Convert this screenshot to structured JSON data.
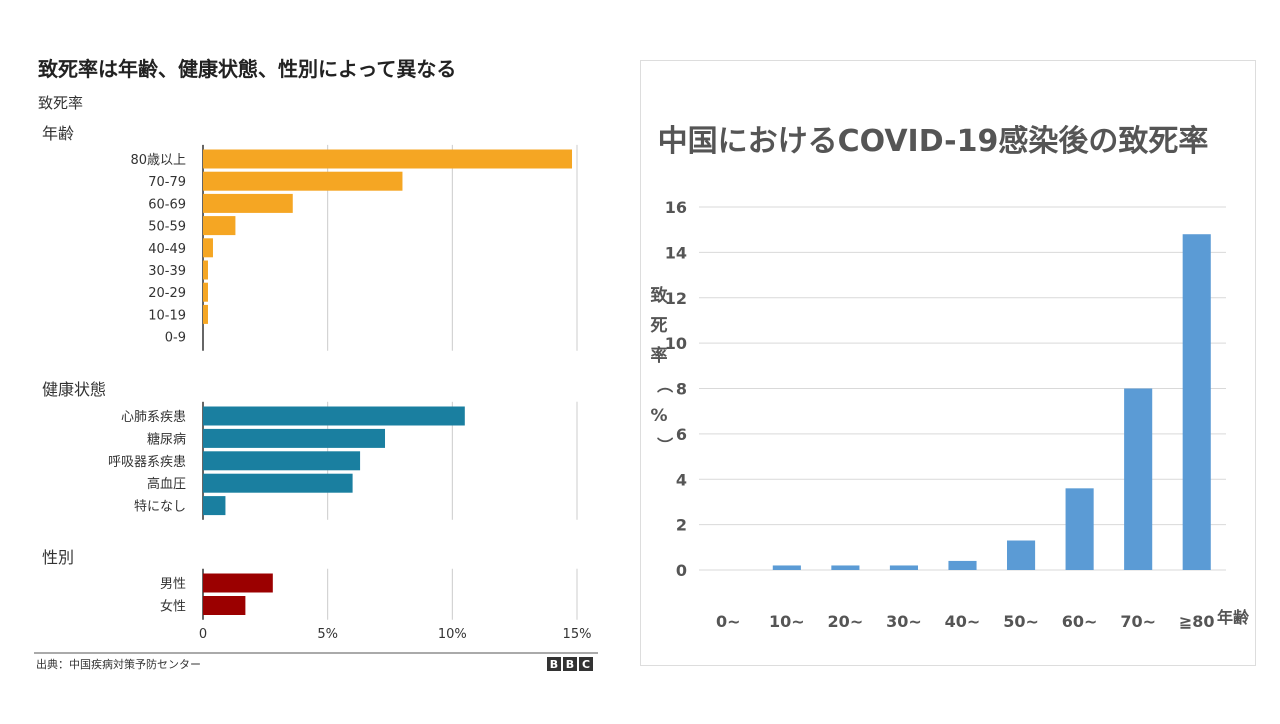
{
  "left": {
    "title": "致死率は年齢、健康状態、性別によって異なる",
    "subtitle": "致死率",
    "source": "出典：中国疾病対策予防センター",
    "logo_letters": [
      "B",
      "B",
      "C"
    ],
    "x_ticks": [
      "0",
      "5%",
      "10%",
      "15%"
    ]
  },
  "right": {
    "title": "中国におけるCOVID-19感染後の致死率",
    "ylabel": "致死率（%）",
    "xlabel": "年齢"
  },
  "colors": {
    "age": "#f5a623",
    "health": "#1a7fa0",
    "sex": "#9b0000",
    "right_bar": "#5b9bd5",
    "grid": "#cccccc"
  },
  "chart_data": [
    {
      "type": "bar",
      "orientation": "horizontal",
      "title": "致死率は年齢、健康状態、性別によって異なる",
      "xlim": [
        0,
        15
      ],
      "x_ticks": [
        "0",
        "5%",
        "10%",
        "15%"
      ],
      "groups": [
        {
          "name": "年齢",
          "categories": [
            "80歳以上",
            "70-79",
            "60-69",
            "50-59",
            "40-49",
            "30-39",
            "20-29",
            "10-19",
            "0-9"
          ],
          "values": [
            14.8,
            8.0,
            3.6,
            1.3,
            0.4,
            0.2,
            0.2,
            0.2,
            0
          ]
        },
        {
          "name": "健康状態",
          "categories": [
            "心肺系疾患",
            "糖尿病",
            "呼吸器系疾患",
            "高血圧",
            "特になし"
          ],
          "values": [
            10.5,
            7.3,
            6.3,
            6.0,
            0.9
          ]
        },
        {
          "name": "性別",
          "categories": [
            "男性",
            "女性"
          ],
          "values": [
            2.8,
            1.7
          ]
        }
      ]
    },
    {
      "type": "bar",
      "title": "中国におけるCOVID-19感染後の致死率",
      "categories": [
        "0~",
        "10~",
        "20~",
        "30~",
        "40~",
        "50~",
        "60~",
        "70~",
        "≧80"
      ],
      "values": [
        0,
        0.2,
        0.2,
        0.2,
        0.4,
        1.3,
        3.6,
        8.0,
        14.8
      ],
      "ylim": [
        0,
        16
      ],
      "y_ticks": [
        0,
        2,
        4,
        6,
        8,
        10,
        12,
        14,
        16
      ],
      "xlabel": "年齢",
      "ylabel": "致死率（%）",
      "grid": true
    }
  ]
}
